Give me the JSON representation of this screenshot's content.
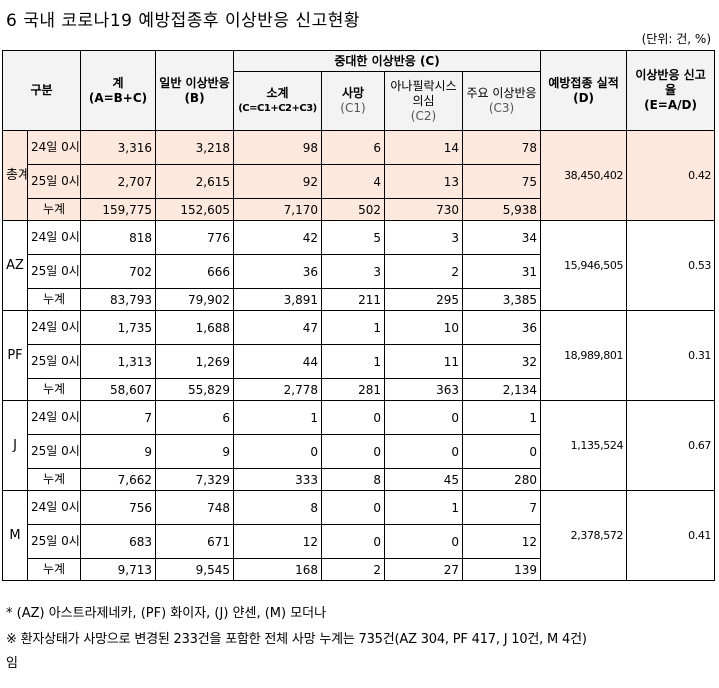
{
  "title": "6 국내 코로나19 예방접종후 이상반응 신고현황",
  "unit": "(단위: 건, %)",
  "headers": {
    "category": "구분",
    "total": "계",
    "total_sub": "(A=B+C)",
    "general": "일반 이상반응",
    "general_sub": "(B)",
    "serious": "중대한 이상반응 (C)",
    "subtotal": "소계",
    "subtotal_sub": "(C=C1+C2+C3)",
    "death": "사망",
    "death_sub": "(C1)",
    "anaphylaxis": "아나필락시스 의심",
    "anaphylaxis_sub": "(C2)",
    "major": "주요 이상반응",
    "major_sub": "(C3)",
    "vaccinations": "예방접종 실적(D)",
    "rate": "이상반응 신고율",
    "rate_sub": "(E=A/D)"
  },
  "groups": [
    {
      "name": "총계",
      "vaccinations": "38,450,402",
      "rate": "0.42",
      "rows": [
        {
          "label": "24일 0시",
          "total": "3,316",
          "general": "3,218",
          "subtotal": "98",
          "death": "6",
          "anaphylaxis": "14",
          "major": "78"
        },
        {
          "label": "25일 0시",
          "total": "2,707",
          "general": "2,615",
          "subtotal": "92",
          "death": "4",
          "anaphylaxis": "13",
          "major": "75"
        },
        {
          "label": "누계",
          "total": "159,775",
          "general": "152,605",
          "subtotal": "7,170",
          "death": "502",
          "anaphylaxis": "730",
          "major": "5,938"
        }
      ]
    },
    {
      "name": "AZ",
      "vaccinations": "15,946,505",
      "rate": "0.53",
      "rows": [
        {
          "label": "24일 0시",
          "total": "818",
          "general": "776",
          "subtotal": "42",
          "death": "5",
          "anaphylaxis": "3",
          "major": "34"
        },
        {
          "label": "25일 0시",
          "total": "702",
          "general": "666",
          "subtotal": "36",
          "death": "3",
          "anaphylaxis": "2",
          "major": "31"
        },
        {
          "label": "누계",
          "total": "83,793",
          "general": "79,902",
          "subtotal": "3,891",
          "death": "211",
          "anaphylaxis": "295",
          "major": "3,385"
        }
      ]
    },
    {
      "name": "PF",
      "vaccinations": "18,989,801",
      "rate": "0.31",
      "rows": [
        {
          "label": "24일 0시",
          "total": "1,735",
          "general": "1,688",
          "subtotal": "47",
          "death": "1",
          "anaphylaxis": "10",
          "major": "36"
        },
        {
          "label": "25일 0시",
          "total": "1,313",
          "general": "1,269",
          "subtotal": "44",
          "death": "1",
          "anaphylaxis": "11",
          "major": "32"
        },
        {
          "label": "누계",
          "total": "58,607",
          "general": "55,829",
          "subtotal": "2,778",
          "death": "281",
          "anaphylaxis": "363",
          "major": "2,134"
        }
      ]
    },
    {
      "name": "J",
      "vaccinations": "1,135,524",
      "rate": "0.67",
      "rows": [
        {
          "label": "24일 0시",
          "total": "7",
          "general": "6",
          "subtotal": "1",
          "death": "0",
          "anaphylaxis": "0",
          "major": "1"
        },
        {
          "label": "25일 0시",
          "total": "9",
          "general": "9",
          "subtotal": "0",
          "death": "0",
          "anaphylaxis": "0",
          "major": "0"
        },
        {
          "label": "누계",
          "total": "7,662",
          "general": "7,329",
          "subtotal": "333",
          "death": "8",
          "anaphylaxis": "45",
          "major": "280"
        }
      ]
    },
    {
      "name": "M",
      "vaccinations": "2,378,572",
      "rate": "0.41",
      "rows": [
        {
          "label": "24일 0시",
          "total": "756",
          "general": "748",
          "subtotal": "8",
          "death": "0",
          "anaphylaxis": "1",
          "major": "7"
        },
        {
          "label": "25일 0시",
          "total": "683",
          "general": "671",
          "subtotal": "12",
          "death": "0",
          "anaphylaxis": "0",
          "major": "12"
        },
        {
          "label": "누계",
          "total": "9,713",
          "general": "9,545",
          "subtotal": "168",
          "death": "2",
          "anaphylaxis": "27",
          "major": "139"
        }
      ]
    }
  ],
  "notes": {
    "line1": "* (AZ) 아스트라제네카, (PF) 화이자, (J) 얀센, (M) 모더나",
    "line2": "※ 환자상태가 사망으로 변경된 233건을 포함한 전체 사망 누계는 735건(AZ 304, PF 417, J 10건, M 4건)",
    "line3": "임"
  },
  "colors": {
    "highlight": "#fce8dc",
    "header_bg": "#f3f3f3"
  }
}
